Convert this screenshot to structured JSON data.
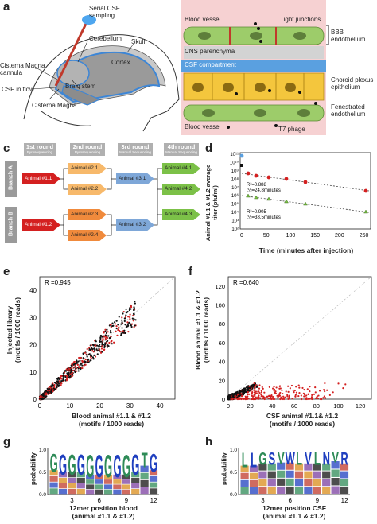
{
  "panels": {
    "a": {
      "letter": "a",
      "labels": {
        "serial": "Serial CSF sampling",
        "cerebellum": "Cerebellum",
        "skull": "Skull",
        "cisterna_cannula": "Cisterna Magna cannula",
        "cortex": "Cortex",
        "csf_flow": "CSF in flow",
        "brainstem": "Brain stem",
        "cisterna": "Cisterna Magna"
      }
    },
    "b": {
      "letter": "b",
      "labels": {
        "blood_top": "Blood vessel",
        "tight": "Tight junctions",
        "bbb": "BBB endothelium",
        "cns": "CNS parenchyma",
        "csf_comp": "CSF compartment",
        "choroid": "Choroid plexus epithelium",
        "fenestrated": "Fenestrated endothelium",
        "blood_bottom": "Blood vessel",
        "t7": "T7 phage"
      }
    },
    "c": {
      "letter": "c",
      "rounds": [
        {
          "title": "1st round",
          "sub": "Pyrosequencing"
        },
        {
          "title": "2nd round",
          "sub": "Pyrosequencing"
        },
        {
          "title": "3rd round",
          "sub": "Manual Sequencing"
        },
        {
          "title": "4th round",
          "sub": "Manual Sequencing"
        }
      ],
      "branches": [
        "Branch A",
        "Branch B"
      ],
      "nodes": {
        "a11": "Animal #1.1",
        "a21": "Animal #2.1",
        "a22": "Animal #2.2",
        "a31": "Animal #3.1",
        "a41": "Animal #4.1",
        "a42": "Animal #4.2",
        "a43": "Animal #4.3",
        "a12": "Animal #1.2",
        "a23": "Animal #2.3",
        "a24": "Animal #2.4",
        "a32": "Animal #3.2"
      }
    },
    "d": {
      "letter": "d",
      "ylabel": "Animal #1.1 & #1.2 average titer (pfu/ml)",
      "xlabel": "Time (minutes after injection)",
      "yticks": [
        "10¹¹",
        "10¹⁰",
        "10⁹",
        "10⁸",
        "10⁷",
        "10⁶",
        "10⁵",
        "10⁴",
        "10³",
        "10²"
      ],
      "xticks": [
        "0",
        "50",
        "100",
        "150",
        "200",
        "250"
      ],
      "stat1": [
        "R²=0.888",
        "t½=24.8minutes"
      ],
      "stat2": [
        "R²=0.905",
        "t½=38.5minutes"
      ]
    },
    "e": {
      "letter": "e",
      "r": "R =0.945",
      "ylabel": [
        "Injected library",
        "(motifs / 1000 reads)"
      ],
      "xlabel": [
        "Blood animal #1.1 & #1.2",
        "(motifs / 1000 reads)"
      ],
      "xticks": [
        "0",
        "10",
        "20",
        "30",
        "40"
      ],
      "yticks": [
        "0",
        "10",
        "20",
        "30",
        "40"
      ]
    },
    "f": {
      "letter": "f",
      "r": "R =0.640",
      "ylabel": [
        "Blood animal #1.1 & #1.2",
        "(motifs / 1000 reads)"
      ],
      "xlabel": [
        "CSF animal #1.1& #1.2",
        "(motifs / 1000 reads)"
      ],
      "xticks": [
        "0",
        "20",
        "40",
        "60",
        "80",
        "100",
        "120"
      ],
      "yticks": [
        "0",
        "20",
        "40",
        "60",
        "80",
        "100",
        "120"
      ]
    },
    "g": {
      "letter": "g",
      "ylabel": "probability",
      "yticks": [
        "0.0",
        "0.5",
        "1.0"
      ],
      "xticks": [
        "3",
        "6",
        "9",
        "12"
      ],
      "xlabel": [
        "12mer position blood",
        "(animal #1.1 & #1.2)"
      ],
      "top_letters": [
        "G",
        "G",
        "G",
        "G",
        "G",
        "G",
        "G",
        "G",
        "G",
        "G",
        "T",
        "G"
      ]
    },
    "h": {
      "letter": "h",
      "ylabel": "probability",
      "yticks": [
        "0.0",
        "0.5",
        "1.0"
      ],
      "xticks": [
        "3",
        "6",
        "9",
        "12"
      ],
      "xlabel": [
        "12mer position CSF",
        "(animal #1.1 & #1.2)"
      ],
      "top_letters": [
        "L",
        "L",
        "G",
        "S",
        "V",
        "W",
        "L",
        "V",
        "L",
        "N",
        "V",
        "R"
      ]
    }
  },
  "colors": {
    "red": "#d42020",
    "orange": "#f08a3c",
    "light_orange": "#f7b96b",
    "blue": "#7ea7d8",
    "green": "#7cc148",
    "branch_gray": "#9a9a9a",
    "csf_blue": "#5aa0e0",
    "endothelium_green": "#9dcc6a",
    "epithelium_yellow": "#f4c63d"
  }
}
